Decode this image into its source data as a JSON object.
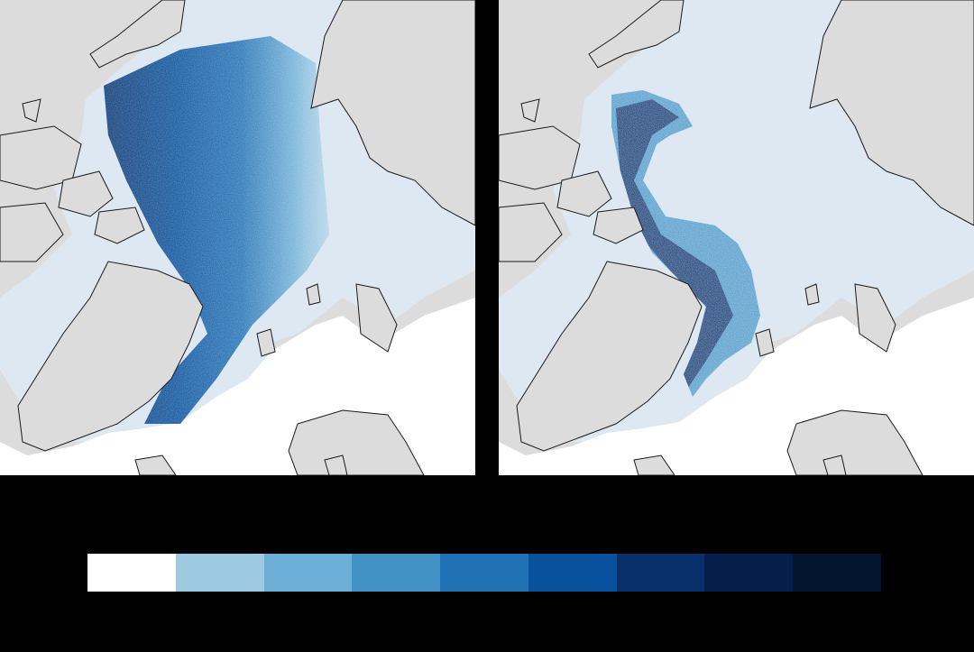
{
  "maps": [
    {
      "id": "left",
      "pattern": "broad_gradient"
    },
    {
      "id": "right",
      "pattern": "narrow_stream"
    }
  ],
  "colors": {
    "land": "#dcdcdc",
    "sea_ice": "#dde8f3",
    "open_ocean": "#ffffff",
    "coastline": "#1a1a1a",
    "background": "#000000"
  },
  "colorbar": {
    "bins": [
      "#ffffff",
      "#9ecae1",
      "#6baed6",
      "#4292c6",
      "#2171b5",
      "#08519c",
      "#08306b",
      "#061f4a",
      "#04152f"
    ]
  }
}
